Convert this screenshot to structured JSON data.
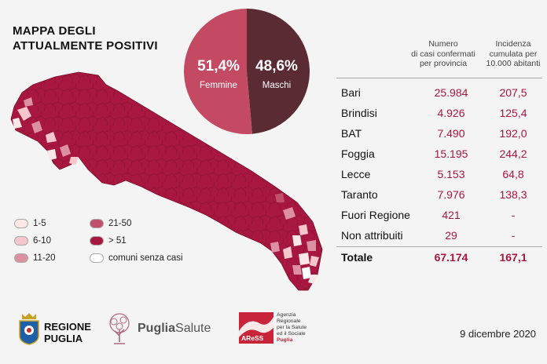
{
  "title": {
    "line1": "MAPPA DEGLI",
    "line2": "ATTUALMENTE POSITIVI"
  },
  "pie": {
    "female": {
      "pct": "51,4%",
      "label": "Femmine",
      "value": 51.4,
      "color": "#c44a64"
    },
    "male": {
      "pct": "48,6%",
      "label": "Maschi",
      "value": 48.6,
      "color": "#5b2b33"
    }
  },
  "legend": [
    {
      "label": "1-5",
      "color": "#fbe7e7"
    },
    {
      "label": "6-10",
      "color": "#f5c6cc"
    },
    {
      "label": "11-20",
      "color": "#dc90a2"
    },
    {
      "label": "21-50",
      "color": "#c0506c"
    },
    {
      "label": "> 51",
      "color": "#a8173f"
    },
    {
      "label": "comuni senza casi",
      "color": "#ffffff"
    }
  ],
  "table": {
    "col1": [
      "Numero",
      "di casi confermati",
      "per provincia"
    ],
    "col2": [
      "Incidenza",
      "cumulata per",
      "10.000 abitanti"
    ],
    "rows": [
      {
        "name": "Bari",
        "cases": "25.984",
        "inc": "207,5"
      },
      {
        "name": "Brindisi",
        "cases": "4.926",
        "inc": "125,4"
      },
      {
        "name": "BAT",
        "cases": "7.490",
        "inc": "192,0"
      },
      {
        "name": "Foggia",
        "cases": "15.195",
        "inc": "244,2"
      },
      {
        "name": "Lecce",
        "cases": "5.153",
        "inc": "64,8"
      },
      {
        "name": "Taranto",
        "cases": "7.976",
        "inc": "138,3"
      },
      {
        "name": "Fuori Regione",
        "cases": "421",
        "inc": "-"
      },
      {
        "name": "Non attribuiti",
        "cases": "29",
        "inc": "-"
      }
    ],
    "total": {
      "name": "Totale",
      "cases": "67.174",
      "inc": "167,1"
    }
  },
  "footer": {
    "regione": {
      "line1": "REGIONE",
      "line2": "PUGLIA"
    },
    "puglia_salute": {
      "bold": "Puglia",
      "light": "Salute"
    },
    "aress": {
      "abbr": "AReSS",
      "text": [
        "Agenzia",
        "Regionale",
        "per la Salute",
        "ed il Sociale",
        "Puglia"
      ]
    },
    "date": "9 dicembre 2020"
  },
  "colors": {
    "accent": "#a8173f",
    "map_fill": "#a8173f"
  }
}
